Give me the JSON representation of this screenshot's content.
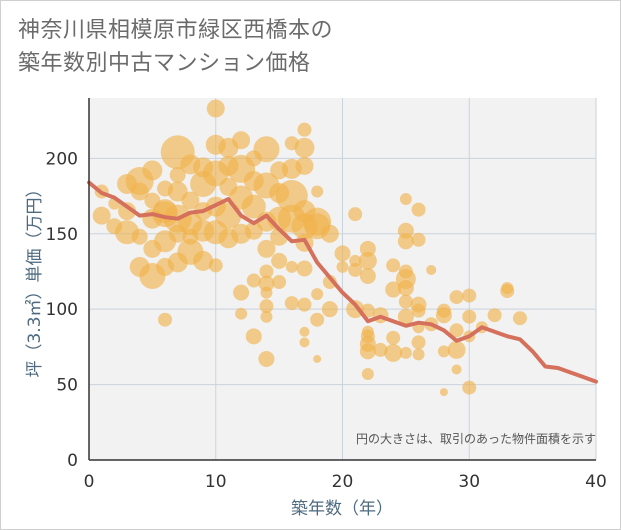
{
  "title_line1": "神奈川県相模原市緑区西橋本の",
  "title_line2": "築年数別中古マンション価格",
  "chart_data": {
    "type": "scatter",
    "title": "神奈川県相模原市緑区西橋本の築年数別中古マンション価格",
    "xlabel": "築年数（年）",
    "ylabel": "坪（3.3㎡）単価（万円）",
    "xlim": [
      0,
      40
    ],
    "ylim": [
      0,
      240
    ],
    "xticks": [
      0,
      10,
      20,
      30,
      40
    ],
    "yticks": [
      0,
      50,
      100,
      150,
      200
    ],
    "grid": true,
    "annotation": "円の大きさは、取引のあった物件面積を示す",
    "colors": {
      "bubble": "#f0b24b",
      "line": "#d4705c",
      "axis": "#333333",
      "grid": "#c9d3dc",
      "plot_bg": "#f2f2f2"
    },
    "line_series": {
      "x": [
        0,
        1,
        2,
        3,
        4,
        5,
        6,
        7,
        8,
        9,
        10,
        11,
        12,
        13,
        14,
        15,
        16,
        17,
        18,
        19,
        20,
        21,
        22,
        23,
        24,
        25,
        26,
        27,
        28,
        29,
        30,
        31,
        32,
        33,
        34,
        35,
        36,
        37,
        38,
        39,
        40
      ],
      "y": [
        184,
        177,
        174,
        168,
        162,
        163,
        161,
        160,
        164,
        165,
        169,
        173,
        162,
        157,
        162,
        153,
        145,
        146,
        131,
        121,
        111,
        103,
        92,
        95,
        92,
        89,
        91,
        90,
        86,
        79,
        82,
        88,
        85,
        82,
        80,
        72,
        62,
        61,
        58,
        55,
        52
      ]
    },
    "points": [
      [
        1,
        162,
        9
      ],
      [
        1,
        178,
        7
      ],
      [
        2,
        155,
        8
      ],
      [
        2,
        170,
        6
      ],
      [
        3,
        151,
        12
      ],
      [
        3,
        165,
        9
      ],
      [
        3,
        183,
        10
      ],
      [
        4,
        128,
        10
      ],
      [
        4,
        148,
        8
      ],
      [
        4,
        178,
        9
      ],
      [
        4,
        185,
        14
      ],
      [
        5,
        122,
        13
      ],
      [
        5,
        140,
        9
      ],
      [
        5,
        160,
        10
      ],
      [
        5,
        172,
        8
      ],
      [
        5,
        192,
        10
      ],
      [
        6,
        93,
        7
      ],
      [
        6,
        128,
        9
      ],
      [
        6,
        145,
        11
      ],
      [
        6,
        165,
        12
      ],
      [
        6,
        180,
        8
      ],
      [
        6,
        163,
        13
      ],
      [
        7,
        131,
        10
      ],
      [
        7,
        150,
        9
      ],
      [
        7,
        178,
        10
      ],
      [
        7,
        204,
        17
      ],
      [
        7,
        189,
        8
      ],
      [
        7,
        160,
        14
      ],
      [
        8,
        138,
        13
      ],
      [
        8,
        157,
        12
      ],
      [
        8,
        172,
        9
      ],
      [
        8,
        196,
        10
      ],
      [
        8,
        148,
        8
      ],
      [
        9,
        132,
        10
      ],
      [
        9,
        152,
        11
      ],
      [
        9,
        165,
        9
      ],
      [
        9,
        183,
        13
      ],
      [
        9,
        194,
        10
      ],
      [
        10,
        129,
        7
      ],
      [
        10,
        151,
        12
      ],
      [
        10,
        168,
        10
      ],
      [
        10,
        190,
        13
      ],
      [
        10,
        209,
        10
      ],
      [
        10,
        233,
        9
      ],
      [
        11,
        147,
        10
      ],
      [
        11,
        162,
        13
      ],
      [
        11,
        181,
        9
      ],
      [
        11,
        195,
        10
      ],
      [
        11,
        207,
        10
      ],
      [
        12,
        97,
        6
      ],
      [
        12,
        111,
        8
      ],
      [
        12,
        150,
        10
      ],
      [
        12,
        174,
        12
      ],
      [
        12,
        193,
        14
      ],
      [
        12,
        212,
        9
      ],
      [
        13,
        82,
        8
      ],
      [
        13,
        119,
        7
      ],
      [
        13,
        152,
        9
      ],
      [
        13,
        168,
        12
      ],
      [
        13,
        185,
        10
      ],
      [
        13,
        200,
        8
      ],
      [
        14,
        67,
        8
      ],
      [
        14,
        95,
        6
      ],
      [
        14,
        102,
        7
      ],
      [
        14,
        111,
        6
      ],
      [
        14,
        117,
        8
      ],
      [
        14,
        125,
        7
      ],
      [
        14,
        140,
        9
      ],
      [
        14,
        158,
        10
      ],
      [
        14,
        182,
        13
      ],
      [
        14,
        206,
        13
      ],
      [
        15,
        118,
        7
      ],
      [
        15,
        132,
        8
      ],
      [
        15,
        148,
        9
      ],
      [
        15,
        160,
        12
      ],
      [
        15,
        177,
        10
      ],
      [
        15,
        192,
        9
      ],
      [
        16,
        104,
        7
      ],
      [
        16,
        128,
        6
      ],
      [
        16,
        160,
        14
      ],
      [
        16,
        175,
        16
      ],
      [
        16,
        193,
        10
      ],
      [
        16,
        210,
        7
      ],
      [
        17,
        78,
        5
      ],
      [
        17,
        85,
        5
      ],
      [
        17,
        103,
        7
      ],
      [
        17,
        127,
        8
      ],
      [
        17,
        144,
        9
      ],
      [
        17,
        155,
        13
      ],
      [
        17,
        165,
        11
      ],
      [
        17,
        195,
        9
      ],
      [
        17,
        207,
        10
      ],
      [
        17,
        219,
        7
      ],
      [
        18,
        67,
        4
      ],
      [
        18,
        93,
        7
      ],
      [
        18,
        110,
        6
      ],
      [
        18,
        155,
        13
      ],
      [
        18,
        158,
        14
      ],
      [
        18,
        178,
        6
      ],
      [
        19,
        100,
        8
      ],
      [
        19,
        118,
        7
      ],
      [
        19,
        150,
        9
      ],
      [
        20,
        128,
        6
      ],
      [
        20,
        137,
        8
      ],
      [
        21,
        100,
        9
      ],
      [
        21,
        126,
        7
      ],
      [
        21,
        132,
        6
      ],
      [
        21,
        163,
        7
      ],
      [
        22,
        57,
        6
      ],
      [
        22,
        72,
        8
      ],
      [
        22,
        77,
        8
      ],
      [
        22,
        82,
        7
      ],
      [
        22,
        85,
        6
      ],
      [
        22,
        99,
        7
      ],
      [
        22,
        122,
        8
      ],
      [
        22,
        132,
        9
      ],
      [
        22,
        140,
        8
      ],
      [
        23,
        73,
        7
      ],
      [
        23,
        96,
        8
      ],
      [
        24,
        71,
        9
      ],
      [
        24,
        81,
        7
      ],
      [
        24,
        113,
        8
      ],
      [
        24,
        129,
        7
      ],
      [
        25,
        71,
        6
      ],
      [
        25,
        95,
        8
      ],
      [
        25,
        105,
        7
      ],
      [
        25,
        114,
        8
      ],
      [
        25,
        120,
        10
      ],
      [
        25,
        125,
        7
      ],
      [
        25,
        145,
        8
      ],
      [
        25,
        152,
        8
      ],
      [
        25,
        173,
        6
      ],
      [
        26,
        70,
        6
      ],
      [
        26,
        78,
        7
      ],
      [
        26,
        88,
        6
      ],
      [
        26,
        99,
        7
      ],
      [
        26,
        103,
        8
      ],
      [
        26,
        146,
        7
      ],
      [
        26,
        166,
        7
      ],
      [
        27,
        90,
        7
      ],
      [
        27,
        126,
        5
      ],
      [
        28,
        45,
        4
      ],
      [
        28,
        96,
        8
      ],
      [
        28,
        99,
        7
      ],
      [
        28,
        72,
        6
      ],
      [
        29,
        60,
        5
      ],
      [
        29,
        73,
        9
      ],
      [
        29,
        86,
        7
      ],
      [
        29,
        108,
        7
      ],
      [
        30,
        48,
        7
      ],
      [
        30,
        82,
        6
      ],
      [
        30,
        95,
        7
      ],
      [
        30,
        109,
        7
      ],
      [
        31,
        88,
        6
      ],
      [
        32,
        96,
        7
      ],
      [
        33,
        112,
        7
      ],
      [
        33,
        114,
        6
      ],
      [
        34,
        94,
        7
      ]
    ]
  }
}
